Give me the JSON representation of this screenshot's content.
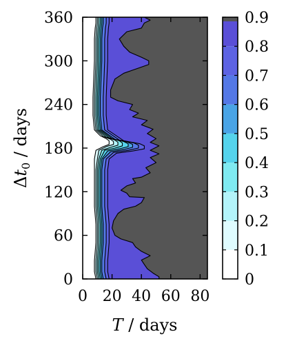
{
  "chart_data": {
    "type": "contour",
    "xlabel_parts": {
      "var": "T",
      "unit": " / days"
    },
    "ylabel_parts": {
      "pre": "Δ",
      "var": "t",
      "sub": "0",
      "unit": " / days"
    },
    "x_ticks": [
      0,
      20,
      40,
      60,
      80
    ],
    "y_ticks": [
      0,
      60,
      120,
      180,
      240,
      300,
      360
    ],
    "xlim": [
      0,
      85
    ],
    "ylim": [
      0,
      360
    ],
    "colorbar": {
      "ticks": [
        0,
        0.1,
        0.2,
        0.3,
        0.4,
        0.5,
        0.6,
        0.7,
        0.8,
        0.9
      ],
      "tick_labels": [
        "0",
        "0.1",
        "0.2",
        "0.3",
        "0.4",
        "0.5",
        "0.6",
        "0.7",
        "0.8",
        "0.9"
      ],
      "range": [
        0,
        0.9
      ],
      "colors": [
        "#ffffff",
        "#dffcff",
        "#b3f4fa",
        "#7feaf1",
        "#55d3ec",
        "#4aa4e6",
        "#5478e6",
        "#5d63e3",
        "#5a4fd7",
        "#555555"
      ]
    },
    "contour_levels": [
      0.1,
      0.2,
      0.3,
      0.4,
      0.5,
      0.6,
      0.7,
      0.8,
      0.9
    ],
    "level_curves": [
      [
        [
          9,
          360
        ],
        [
          9,
          352
        ],
        [
          8.5,
          345
        ],
        [
          8,
          330
        ],
        [
          8,
          300
        ],
        [
          7.5,
          275
        ],
        [
          7,
          250
        ],
        [
          7,
          225
        ],
        [
          8,
          205
        ],
        [
          12,
          197
        ],
        [
          16,
          193
        ],
        [
          18,
          190
        ],
        [
          18,
          185
        ],
        [
          14,
          182
        ],
        [
          9,
          177
        ],
        [
          8,
          165
        ],
        [
          8,
          150
        ],
        [
          8,
          130
        ],
        [
          8,
          100
        ],
        [
          9,
          75
        ],
        [
          9,
          50
        ],
        [
          8,
          25
        ],
        [
          8,
          10
        ],
        [
          9,
          0
        ]
      ],
      [
        [
          10,
          360
        ],
        [
          10,
          352
        ],
        [
          9.5,
          345
        ],
        [
          9,
          330
        ],
        [
          9,
          300
        ],
        [
          8.5,
          275
        ],
        [
          8,
          250
        ],
        [
          8,
          225
        ],
        [
          9,
          205
        ],
        [
          14,
          196
        ],
        [
          19,
          192
        ],
        [
          21,
          189
        ],
        [
          21,
          185
        ],
        [
          16,
          182
        ],
        [
          11,
          177
        ],
        [
          10,
          165
        ],
        [
          9,
          150
        ],
        [
          9,
          130
        ],
        [
          9,
          100
        ],
        [
          10,
          75
        ],
        [
          10,
          50
        ],
        [
          9,
          25
        ],
        [
          9,
          10
        ],
        [
          10,
          0
        ]
      ],
      [
        [
          11,
          360
        ],
        [
          11,
          352
        ],
        [
          10.5,
          345
        ],
        [
          10,
          330
        ],
        [
          10,
          300
        ],
        [
          9.5,
          275
        ],
        [
          9,
          250
        ],
        [
          9,
          225
        ],
        [
          10,
          205
        ],
        [
          16,
          195
        ],
        [
          22,
          191
        ],
        [
          24,
          188
        ],
        [
          24,
          184
        ],
        [
          19,
          181
        ],
        [
          13,
          177
        ],
        [
          11,
          165
        ],
        [
          10,
          150
        ],
        [
          10,
          130
        ],
        [
          10,
          100
        ],
        [
          11,
          75
        ],
        [
          11,
          50
        ],
        [
          10,
          25
        ],
        [
          10,
          10
        ],
        [
          11,
          0
        ]
      ],
      [
        [
          12,
          360
        ],
        [
          12,
          352
        ],
        [
          11.5,
          345
        ],
        [
          11,
          330
        ],
        [
          11,
          300
        ],
        [
          10.5,
          275
        ],
        [
          10,
          250
        ],
        [
          10,
          225
        ],
        [
          11,
          205
        ],
        [
          18,
          194
        ],
        [
          25,
          190
        ],
        [
          27,
          187
        ],
        [
          27,
          183
        ],
        [
          22,
          180
        ],
        [
          15,
          177
        ],
        [
          12,
          165
        ],
        [
          11,
          150
        ],
        [
          11,
          130
        ],
        [
          11,
          100
        ],
        [
          12,
          75
        ],
        [
          12,
          50
        ],
        [
          11,
          25
        ],
        [
          11,
          10
        ],
        [
          12,
          0
        ]
      ],
      [
        [
          13,
          360
        ],
        [
          13,
          352
        ],
        [
          12.5,
          345
        ],
        [
          12,
          330
        ],
        [
          12,
          300
        ],
        [
          11.5,
          275
        ],
        [
          11,
          250
        ],
        [
          11,
          225
        ],
        [
          12,
          205
        ],
        [
          20,
          193
        ],
        [
          28,
          189
        ],
        [
          31,
          186
        ],
        [
          31,
          182
        ],
        [
          25,
          179
        ],
        [
          17,
          176
        ],
        [
          13,
          165
        ],
        [
          12,
          150
        ],
        [
          12,
          130
        ],
        [
          12,
          100
        ],
        [
          13,
          75
        ],
        [
          13,
          50
        ],
        [
          12,
          25
        ],
        [
          12,
          10
        ],
        [
          13,
          0
        ]
      ],
      [
        [
          14,
          360
        ],
        [
          14,
          352
        ],
        [
          13.5,
          345
        ],
        [
          13,
          330
        ],
        [
          13,
          300
        ],
        [
          12.5,
          275
        ],
        [
          12,
          250
        ],
        [
          12,
          225
        ],
        [
          13,
          205
        ],
        [
          22,
          192
        ],
        [
          31,
          188
        ],
        [
          34,
          185
        ],
        [
          34,
          181
        ],
        [
          28,
          178
        ],
        [
          19,
          175
        ],
        [
          14,
          165
        ],
        [
          13,
          150
        ],
        [
          13,
          130
        ],
        [
          13,
          100
        ],
        [
          14,
          75
        ],
        [
          14,
          50
        ],
        [
          13,
          25
        ],
        [
          13,
          10
        ],
        [
          14,
          0
        ]
      ],
      [
        [
          16,
          360
        ],
        [
          16,
          352
        ],
        [
          15.5,
          345
        ],
        [
          15,
          330
        ],
        [
          15,
          300
        ],
        [
          14.5,
          275
        ],
        [
          14,
          250
        ],
        [
          14,
          225
        ],
        [
          15,
          205
        ],
        [
          25,
          191
        ],
        [
          35,
          187
        ],
        [
          38,
          184
        ],
        [
          38,
          180
        ],
        [
          31,
          177
        ],
        [
          21,
          174
        ],
        [
          16,
          165
        ],
        [
          15,
          150
        ],
        [
          15,
          130
        ],
        [
          15,
          100
        ],
        [
          16,
          75
        ],
        [
          16,
          50
        ],
        [
          15,
          25
        ],
        [
          15,
          10
        ],
        [
          16,
          0
        ]
      ],
      [
        [
          18,
          360
        ],
        [
          18,
          352
        ],
        [
          17.5,
          345
        ],
        [
          17,
          330
        ],
        [
          17,
          300
        ],
        [
          16.5,
          275
        ],
        [
          16,
          250
        ],
        [
          16,
          225
        ],
        [
          17,
          205
        ],
        [
          28,
          190
        ],
        [
          39,
          186
        ],
        [
          42,
          183
        ],
        [
          42,
          179
        ],
        [
          34,
          176
        ],
        [
          23,
          173
        ],
        [
          18,
          165
        ],
        [
          17,
          150
        ],
        [
          17,
          130
        ],
        [
          17,
          100
        ],
        [
          18,
          75
        ],
        [
          18,
          50
        ],
        [
          17,
          25
        ],
        [
          17,
          10
        ],
        [
          18,
          0
        ]
      ],
      [
        [
          42,
          360
        ],
        [
          46,
          356
        ],
        [
          42,
          352
        ],
        [
          40,
          345
        ],
        [
          30,
          340
        ],
        [
          25,
          330
        ],
        [
          28,
          320
        ],
        [
          32,
          312
        ],
        [
          40,
          305
        ],
        [
          45,
          300
        ],
        [
          45,
          295
        ],
        [
          38,
          290
        ],
        [
          28,
          283
        ],
        [
          22,
          275
        ],
        [
          19,
          260
        ],
        [
          19,
          250
        ],
        [
          24,
          245
        ],
        [
          34,
          240
        ],
        [
          32,
          233
        ],
        [
          38,
          228
        ],
        [
          34,
          223
        ],
        [
          44,
          218
        ],
        [
          40,
          212
        ],
        [
          48,
          206
        ],
        [
          44,
          200
        ],
        [
          50,
          193
        ],
        [
          46,
          188
        ],
        [
          52,
          183
        ],
        [
          46,
          177
        ],
        [
          52,
          172
        ],
        [
          46,
          167
        ],
        [
          50,
          160
        ],
        [
          43,
          153
        ],
        [
          46,
          146
        ],
        [
          40,
          140
        ],
        [
          34,
          138
        ],
        [
          36,
          132
        ],
        [
          30,
          128
        ],
        [
          26,
          122
        ],
        [
          30,
          118
        ],
        [
          32,
          113
        ],
        [
          42,
          112
        ],
        [
          40,
          105
        ],
        [
          36,
          100
        ],
        [
          28,
          96
        ],
        [
          24,
          90
        ],
        [
          21,
          80
        ],
        [
          20,
          70
        ],
        [
          22,
          60
        ],
        [
          26,
          55
        ],
        [
          34,
          50
        ],
        [
          36,
          44
        ],
        [
          40,
          38
        ],
        [
          46,
          32
        ],
        [
          40,
          26
        ],
        [
          42,
          20
        ],
        [
          44,
          14
        ],
        [
          48,
          8
        ],
        [
          52,
          3
        ],
        [
          52,
          0
        ]
      ]
    ]
  }
}
